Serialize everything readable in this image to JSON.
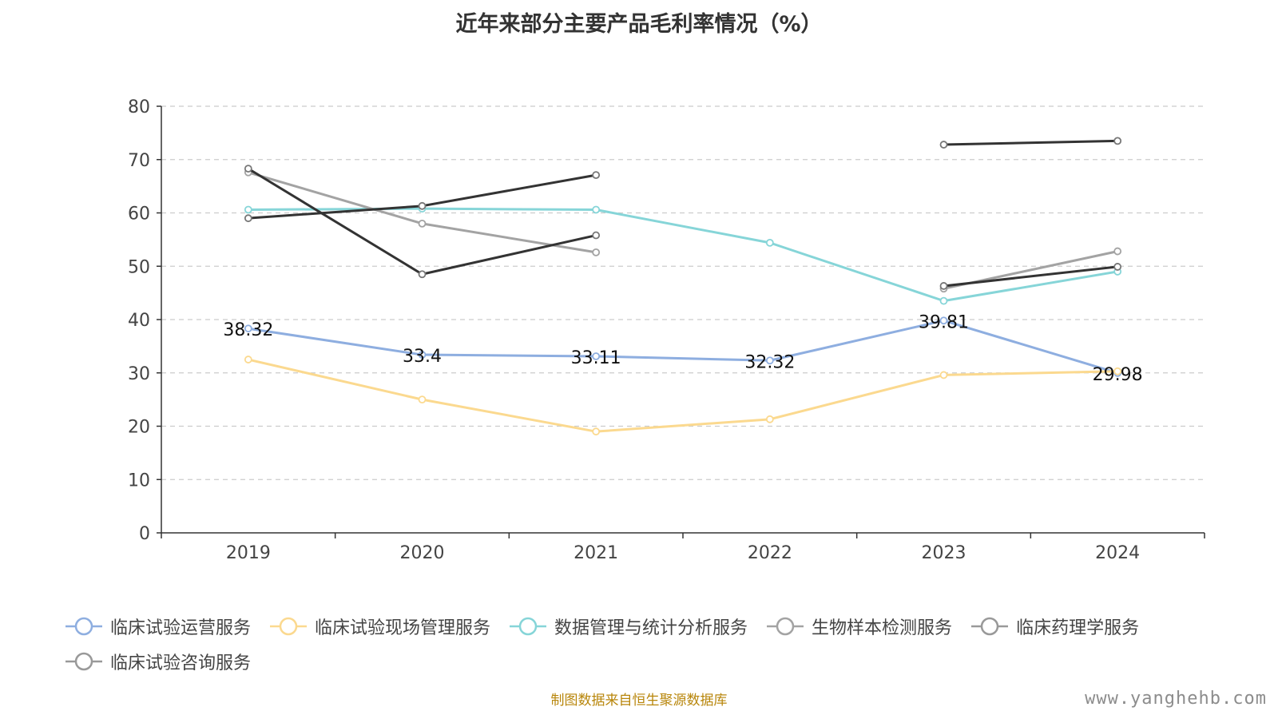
{
  "chart_data": {
    "type": "line",
    "title": "近年来部分主要产品毛利率情况（%）",
    "xlabel": "",
    "ylabel": "",
    "categories": [
      "2019",
      "2020",
      "2021",
      "2022",
      "2023",
      "2024"
    ],
    "ylim": [
      0,
      80
    ],
    "yticks": [
      0,
      10,
      20,
      30,
      40,
      50,
      60,
      70,
      80
    ],
    "grid": true,
    "legend_position": "bottom",
    "series": [
      {
        "name": "临床试验运营服务",
        "color": "#8eaee0",
        "values": [
          38.32,
          33.4,
          33.11,
          32.32,
          39.81,
          29.98
        ],
        "labels": [
          "38.32",
          "33.4",
          "33.11",
          "32.32",
          "39.81",
          "29.98"
        ]
      },
      {
        "name": "临床试验现场管理服务",
        "color": "#fbd98f",
        "values": [
          32.5,
          25.0,
          19.0,
          21.3,
          29.6,
          30.3
        ]
      },
      {
        "name": "数据管理与统计分析服务",
        "color": "#86d5d8",
        "values": [
          60.6,
          60.8,
          60.6,
          54.4,
          43.5,
          49.0
        ]
      },
      {
        "name": "生物样本检测服务",
        "color": "#a3a3a3",
        "values": [
          67.6,
          58.0,
          52.6,
          null,
          45.8,
          52.8
        ]
      },
      {
        "name": "临床药理学服务",
        "color": "#333333",
        "values": [
          59.0,
          61.3,
          67.1,
          null,
          46.3,
          49.9
        ]
      },
      {
        "name": "临床试验咨询服务",
        "color": "#333333",
        "values": [
          68.3,
          48.5,
          55.8,
          null,
          72.8,
          73.5
        ]
      }
    ]
  },
  "legend_icons": [
    "circle-line-icon"
  ],
  "source": "制图数据来自恒生聚源数据库",
  "watermark": "www.yanghehb.com"
}
